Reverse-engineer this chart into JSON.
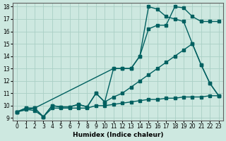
{
  "xlabel": "Humidex (Indice chaleur)",
  "xlim_min": -0.5,
  "xlim_max": 23.5,
  "ylim_min": 8.8,
  "ylim_max": 18.3,
  "yticks": [
    9,
    10,
    11,
    12,
    13,
    14,
    15,
    16,
    17,
    18
  ],
  "xticks": [
    0,
    1,
    2,
    3,
    4,
    5,
    6,
    7,
    8,
    9,
    10,
    11,
    12,
    13,
    14,
    15,
    16,
    17,
    18,
    19,
    20,
    21,
    22,
    23
  ],
  "bg_color": "#cde8e0",
  "grid_color": "#aacfc5",
  "line_color": "#006060",
  "line_width": 1.0,
  "marker_size": 2.5,
  "line1_x": [
    0,
    1,
    2,
    3,
    4,
    5,
    6,
    7,
    8,
    9,
    10,
    11,
    12,
    13,
    14,
    15,
    16,
    17,
    18,
    19,
    20,
    21,
    22,
    23
  ],
  "line1_y": [
    9.5,
    9.7,
    9.6,
    9.1,
    9.8,
    9.8,
    9.8,
    9.8,
    9.8,
    10.0,
    10.0,
    10.1,
    10.2,
    10.3,
    10.4,
    10.5,
    10.5,
    10.6,
    10.6,
    10.7,
    10.7,
    10.7,
    10.8,
    10.8
  ],
  "line2_x": [
    0,
    1,
    2,
    3,
    4,
    5,
    6,
    7,
    8,
    9,
    10,
    11,
    12,
    13,
    14,
    15,
    16,
    17,
    18,
    19,
    20,
    21,
    22,
    23
  ],
  "line2_y": [
    9.5,
    9.8,
    9.8,
    9.1,
    10.0,
    9.9,
    9.9,
    10.1,
    9.9,
    11.0,
    10.3,
    10.7,
    11.0,
    11.5,
    12.0,
    12.5,
    13.0,
    13.5,
    14.0,
    14.5,
    15.0,
    13.3,
    11.8,
    10.8
  ],
  "line3_x": [
    0,
    1,
    2,
    3,
    4,
    5,
    6,
    7,
    8,
    9,
    10,
    11,
    12,
    13,
    14,
    15,
    16,
    17,
    18,
    19,
    20,
    21,
    22,
    23
  ],
  "line3_y": [
    9.5,
    9.8,
    9.8,
    9.1,
    10.0,
    9.9,
    9.9,
    10.1,
    9.9,
    11.0,
    10.3,
    13.0,
    13.0,
    13.0,
    14.0,
    16.2,
    16.5,
    16.5,
    18.0,
    17.9,
    17.2,
    16.8,
    16.8,
    16.8
  ],
  "line4_x": [
    0,
    2,
    11,
    12,
    13,
    14,
    15,
    16,
    17,
    18,
    19,
    20,
    21,
    22,
    23
  ],
  "line4_y": [
    9.5,
    9.8,
    13.0,
    13.0,
    13.0,
    14.0,
    18.0,
    17.8,
    17.2,
    17.0,
    16.8,
    15.0,
    13.3,
    11.8,
    10.8
  ]
}
